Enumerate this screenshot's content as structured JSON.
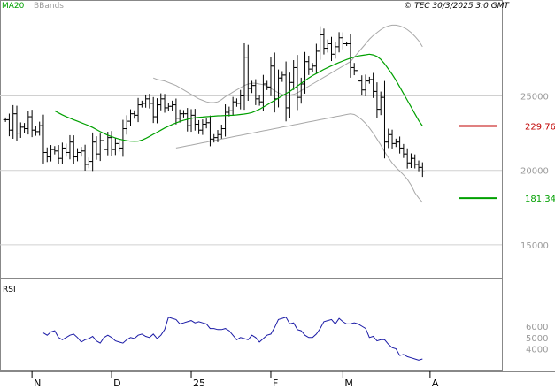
{
  "chart_data": [
    {
      "type": "ohlc",
      "legend": [
        {
          "name": "MA20",
          "color": "#00a000"
        },
        {
          "name": "BBands",
          "color": "#a8a8a8"
        }
      ],
      "copyright": "© TEC 30/3/2025 3:0 GMT",
      "y_axis": {
        "ylim": [
          128,
          312
        ],
        "tick_labels": [
          {
            "value": 250,
            "label": "25000"
          },
          {
            "value": 200,
            "label": "20000"
          },
          {
            "value": 150,
            "label": "15000"
          }
        ],
        "gridlines": [
          250,
          200,
          150
        ],
        "position": "right",
        "grid": true
      },
      "x_axis": {
        "tick_labels": [
          {
            "bar": 7,
            "label": "N"
          },
          {
            "bar": 28,
            "label": "D"
          },
          {
            "bar": 49,
            "label": "25"
          },
          {
            "bar": 70,
            "label": "F"
          },
          {
            "bar": 89,
            "label": "M"
          },
          {
            "bar": 112,
            "label": "A"
          }
        ],
        "n_slots": 120
      },
      "levels": [
        {
          "value": 229.76,
          "label": "229.76",
          "color": "#c00000"
        },
        {
          "value": 181.34,
          "label": "181.34",
          "color": "#00a000"
        }
      ],
      "close": [
        234,
        227,
        238,
        225,
        229,
        228,
        236,
        227,
        226,
        230,
        212,
        209,
        214,
        213,
        208,
        215,
        212,
        219,
        209,
        212,
        213,
        204,
        206,
        219,
        211,
        220,
        214,
        222,
        214,
        218,
        215,
        228,
        233,
        238,
        237,
        244,
        245,
        248,
        245,
        236,
        244,
        248,
        242,
        243,
        244,
        235,
        238,
        238,
        230,
        237,
        231,
        227,
        231,
        232,
        221,
        222,
        224,
        228,
        239,
        240,
        246,
        245,
        250,
        276,
        255,
        257,
        248,
        246,
        258,
        256,
        270,
        248,
        262,
        264,
        242,
        259,
        269,
        249,
        258,
        273,
        268,
        270,
        280,
        291,
        282,
        285,
        278,
        283,
        289,
        285,
        285,
        269,
        267,
        260,
        254,
        260,
        261,
        253,
        241,
        249,
        219,
        224,
        218,
        219,
        215,
        211,
        205,
        208,
        204,
        202,
        199
      ],
      "ma20": [
        240,
        238.6,
        237.3,
        236.1,
        235,
        234,
        233,
        232,
        231,
        230,
        228.8,
        227.4,
        226,
        224.8,
        223.6,
        222.6,
        221.7,
        221,
        220.4,
        219.9,
        219.6,
        219.5,
        219.6,
        220.3,
        221.4,
        222.8,
        224.2,
        225.6,
        227,
        228.4,
        229.6,
        230.8,
        231.8,
        232.8,
        233.6,
        234.3,
        234.9,
        235.3,
        235.6,
        235.8,
        236,
        236.2,
        236.4,
        236.6,
        236.7,
        236.8,
        236.9,
        237,
        237.2,
        237.5,
        237.8,
        238.2,
        238.8,
        239.8,
        241,
        242.5,
        244,
        245.5,
        247,
        248.5,
        250,
        251.5,
        253,
        254.8,
        256.6,
        258.4,
        260.2,
        262,
        263.6,
        265,
        266.4,
        267.8,
        269,
        270.2,
        271.3,
        272.4,
        273.4,
        274.4,
        275.3,
        276.1,
        276.8,
        277.2,
        277.6,
        278,
        277.5,
        276.5,
        274.5,
        271.5,
        268,
        264.5,
        260.5,
        256,
        251.5,
        247,
        242.5,
        238,
        233.5,
        229.8
      ],
      "bb_upper": [
        262,
        261,
        260.5,
        260,
        259,
        258,
        257,
        255.5,
        254,
        252.5,
        251,
        249.5,
        248,
        247,
        246,
        245.5,
        245.5,
        246,
        247.5,
        249.5,
        251,
        252.5,
        254,
        255.5,
        257,
        258,
        258.5,
        258.5,
        258,
        257.5,
        256.5,
        255,
        253.5,
        252,
        251,
        250.5,
        250.5,
        251,
        252,
        253.5,
        255,
        256.5,
        258,
        259.5,
        261,
        262.5,
        264,
        265.5,
        267,
        268.5,
        270,
        271.5,
        273,
        276,
        279,
        282,
        285,
        288,
        290.5,
        292.5,
        294.5,
        296,
        297,
        297.5,
        297.5,
        297,
        296,
        294.5,
        292.5,
        290,
        287,
        283
      ],
      "bb_lower": [
        215,
        215.5,
        216,
        216.5,
        217,
        217.5,
        218,
        218.5,
        219,
        219.5,
        220,
        220.5,
        221,
        221.5,
        222,
        222.5,
        223,
        223.5,
        224,
        224.5,
        225,
        225.5,
        226,
        226.5,
        227,
        227.5,
        228,
        228.5,
        229,
        229.5,
        230,
        230.5,
        231,
        231.5,
        232,
        232.5,
        233,
        233.5,
        234,
        234.5,
        235,
        235.5,
        236,
        236.5,
        237,
        237.5,
        238,
        237.5,
        236,
        234,
        231.5,
        228.5,
        225,
        221,
        217,
        212.5,
        208.5,
        205,
        202,
        199.5,
        197,
        194,
        190,
        185,
        181.5,
        178.5
      ],
      "rsi": [
        54,
        52,
        55,
        56,
        50,
        48,
        50,
        52,
        53,
        50,
        46,
        48,
        49,
        51,
        47,
        45,
        50,
        52,
        50,
        47,
        46,
        45,
        48,
        50,
        49,
        52,
        53,
        51,
        50,
        53,
        49,
        52,
        57,
        68,
        67,
        66,
        62,
        63,
        64,
        65,
        63,
        64,
        63,
        62,
        58,
        58,
        57,
        57,
        58,
        56,
        52,
        48,
        50,
        49,
        48,
        52,
        50,
        46,
        49,
        52,
        53,
        59,
        66,
        67,
        68,
        62,
        63,
        57,
        56,
        52,
        50,
        50,
        53,
        58,
        64,
        65,
        66,
        62,
        67,
        64,
        62,
        62,
        63,
        62,
        60,
        58,
        50,
        51,
        47,
        48,
        48,
        44,
        41,
        40,
        34,
        35,
        33,
        32,
        31,
        30,
        31
      ],
      "rsi_ylim": [
        20,
        100
      ],
      "rsi_tick_labels": [
        {
          "value": 60,
          "label": "6000"
        },
        {
          "value": 50,
          "label": "5000"
        },
        {
          "value": 40,
          "label": "4000"
        }
      ],
      "rsi_title": "RSI",
      "colors": {
        "price": "#000000",
        "ma": "#00a000",
        "bbands": "#a8a8a8",
        "rsi": "#1a1aa6",
        "grid": "#d0d0d0"
      }
    }
  ]
}
